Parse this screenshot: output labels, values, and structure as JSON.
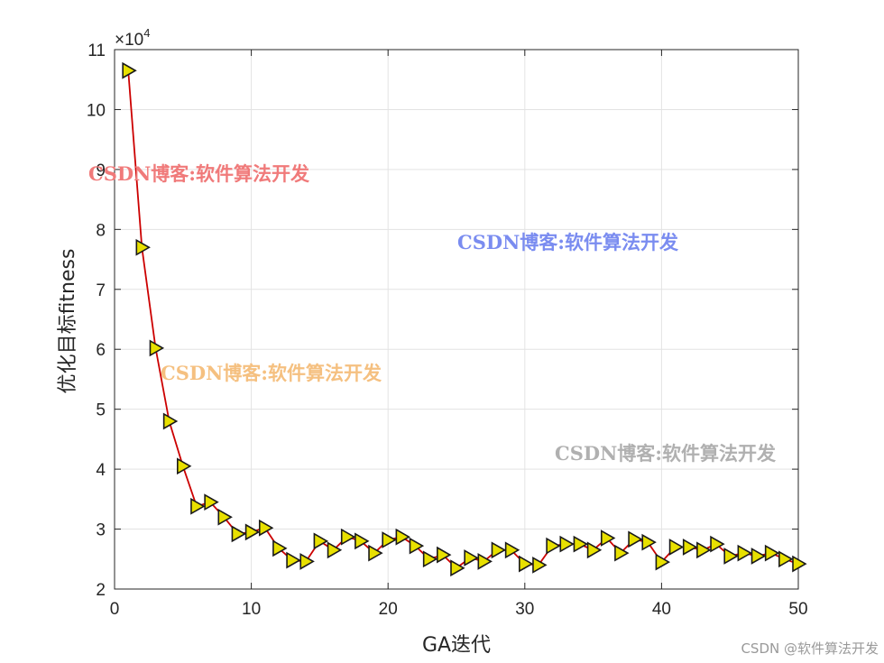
{
  "chart_data": {
    "type": "line",
    "xlabel": "GA迭代",
    "ylabel": "优化目标fitness",
    "y_multiplier_prefix": "×10",
    "y_multiplier_exponent": "4",
    "xlim": [
      0,
      50
    ],
    "ylim": [
      2,
      11
    ],
    "xticks": [
      "0",
      "10",
      "20",
      "30",
      "40",
      "50"
    ],
    "yticks": [
      "2",
      "3",
      "4",
      "5",
      "6",
      "7",
      "8",
      "9",
      "10",
      "11"
    ],
    "grid": true,
    "marker": "triangle-right",
    "line_color": "#cc0000",
    "marker_color": "#e8e000",
    "series": [
      {
        "x": [
          1,
          2,
          3,
          4,
          5,
          6,
          7,
          8,
          9,
          10,
          11,
          12,
          13,
          14,
          15,
          16,
          17,
          18,
          19,
          20,
          21,
          22,
          23,
          24,
          25,
          26,
          27,
          28,
          29,
          30,
          31,
          32,
          33,
          34,
          35,
          36,
          37,
          38,
          39,
          40,
          41,
          42,
          43,
          44,
          45,
          46,
          47,
          48,
          49,
          50
        ],
        "values": [
          10.65,
          7.7,
          6.02,
          4.8,
          4.05,
          3.38,
          3.45,
          3.2,
          2.92,
          2.95,
          3.02,
          2.68,
          2.48,
          2.46,
          2.8,
          2.65,
          2.87,
          2.8,
          2.6,
          2.82,
          2.87,
          2.72,
          2.5,
          2.57,
          2.35,
          2.52,
          2.46,
          2.65,
          2.65,
          2.42,
          2.4,
          2.72,
          2.75,
          2.75,
          2.65,
          2.85,
          2.6,
          2.83,
          2.78,
          2.45,
          2.7,
          2.7,
          2.65,
          2.75,
          2.55,
          2.6,
          2.55,
          2.6,
          2.5,
          2.42
        ]
      }
    ]
  },
  "watermarks": [
    {
      "text": "CSDN博客:软件算法开发",
      "color": "#f07a7a"
    },
    {
      "text": "CSDN博客:软件算法开发",
      "color": "#7a8cf0"
    },
    {
      "text": "CSDN博客:软件算法开发",
      "color": "#f5c080"
    },
    {
      "text": "CSDN博客:软件算法开发",
      "color": "#b0b0b0"
    }
  ],
  "credit": "CSDN @软件算法开发"
}
